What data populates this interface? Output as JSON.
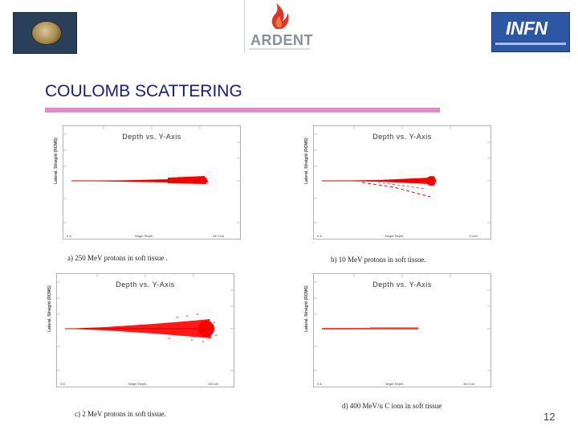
{
  "header": {
    "logo_center_text": "ARDENT",
    "logo_right_text": "INFN"
  },
  "title": "COULOMB SCATTERING",
  "plots": [
    {
      "title": "Depth vs. Y-Axis",
      "ylabel": "Lateral, Straight (ROMS)",
      "x_start": "0 A",
      "x_mid": "- Target Depth -",
      "x_end": "34.0 cm",
      "caption": "a) 250 MeV protons in soft tissue ."
    },
    {
      "title": "Depth vs. Y-Axis",
      "ylabel": "Lateral, Straight (ROMS)",
      "x_start": "0 A",
      "x_mid": "- Target Depth -",
      "x_end": "2 mm",
      "caption": "b) 10 MeV  protons  in soft tissue."
    },
    {
      "title": "Depth vs. Y-Axis",
      "ylabel": "Lateral, Straight (ROMS)",
      "x_start": "0 A",
      "x_mid": "- Target Depth -",
      "x_end": "100 um",
      "caption": "c) 2 MeV protons in soft tissue."
    },
    {
      "title": "Depth vs. Y-Axis",
      "ylabel": "Lateral, Straight (ROMS)",
      "x_start": "0 A",
      "x_mid": "- Target Depth -",
      "x_end": "34.0 cm",
      "caption": "d) 400 MeV/u C ions in soft tissue"
    }
  ],
  "page_number": "12",
  "colors": {
    "title": "#1a1a8c",
    "title_bar": "#e28ad0",
    "track": "#ff0000"
  }
}
